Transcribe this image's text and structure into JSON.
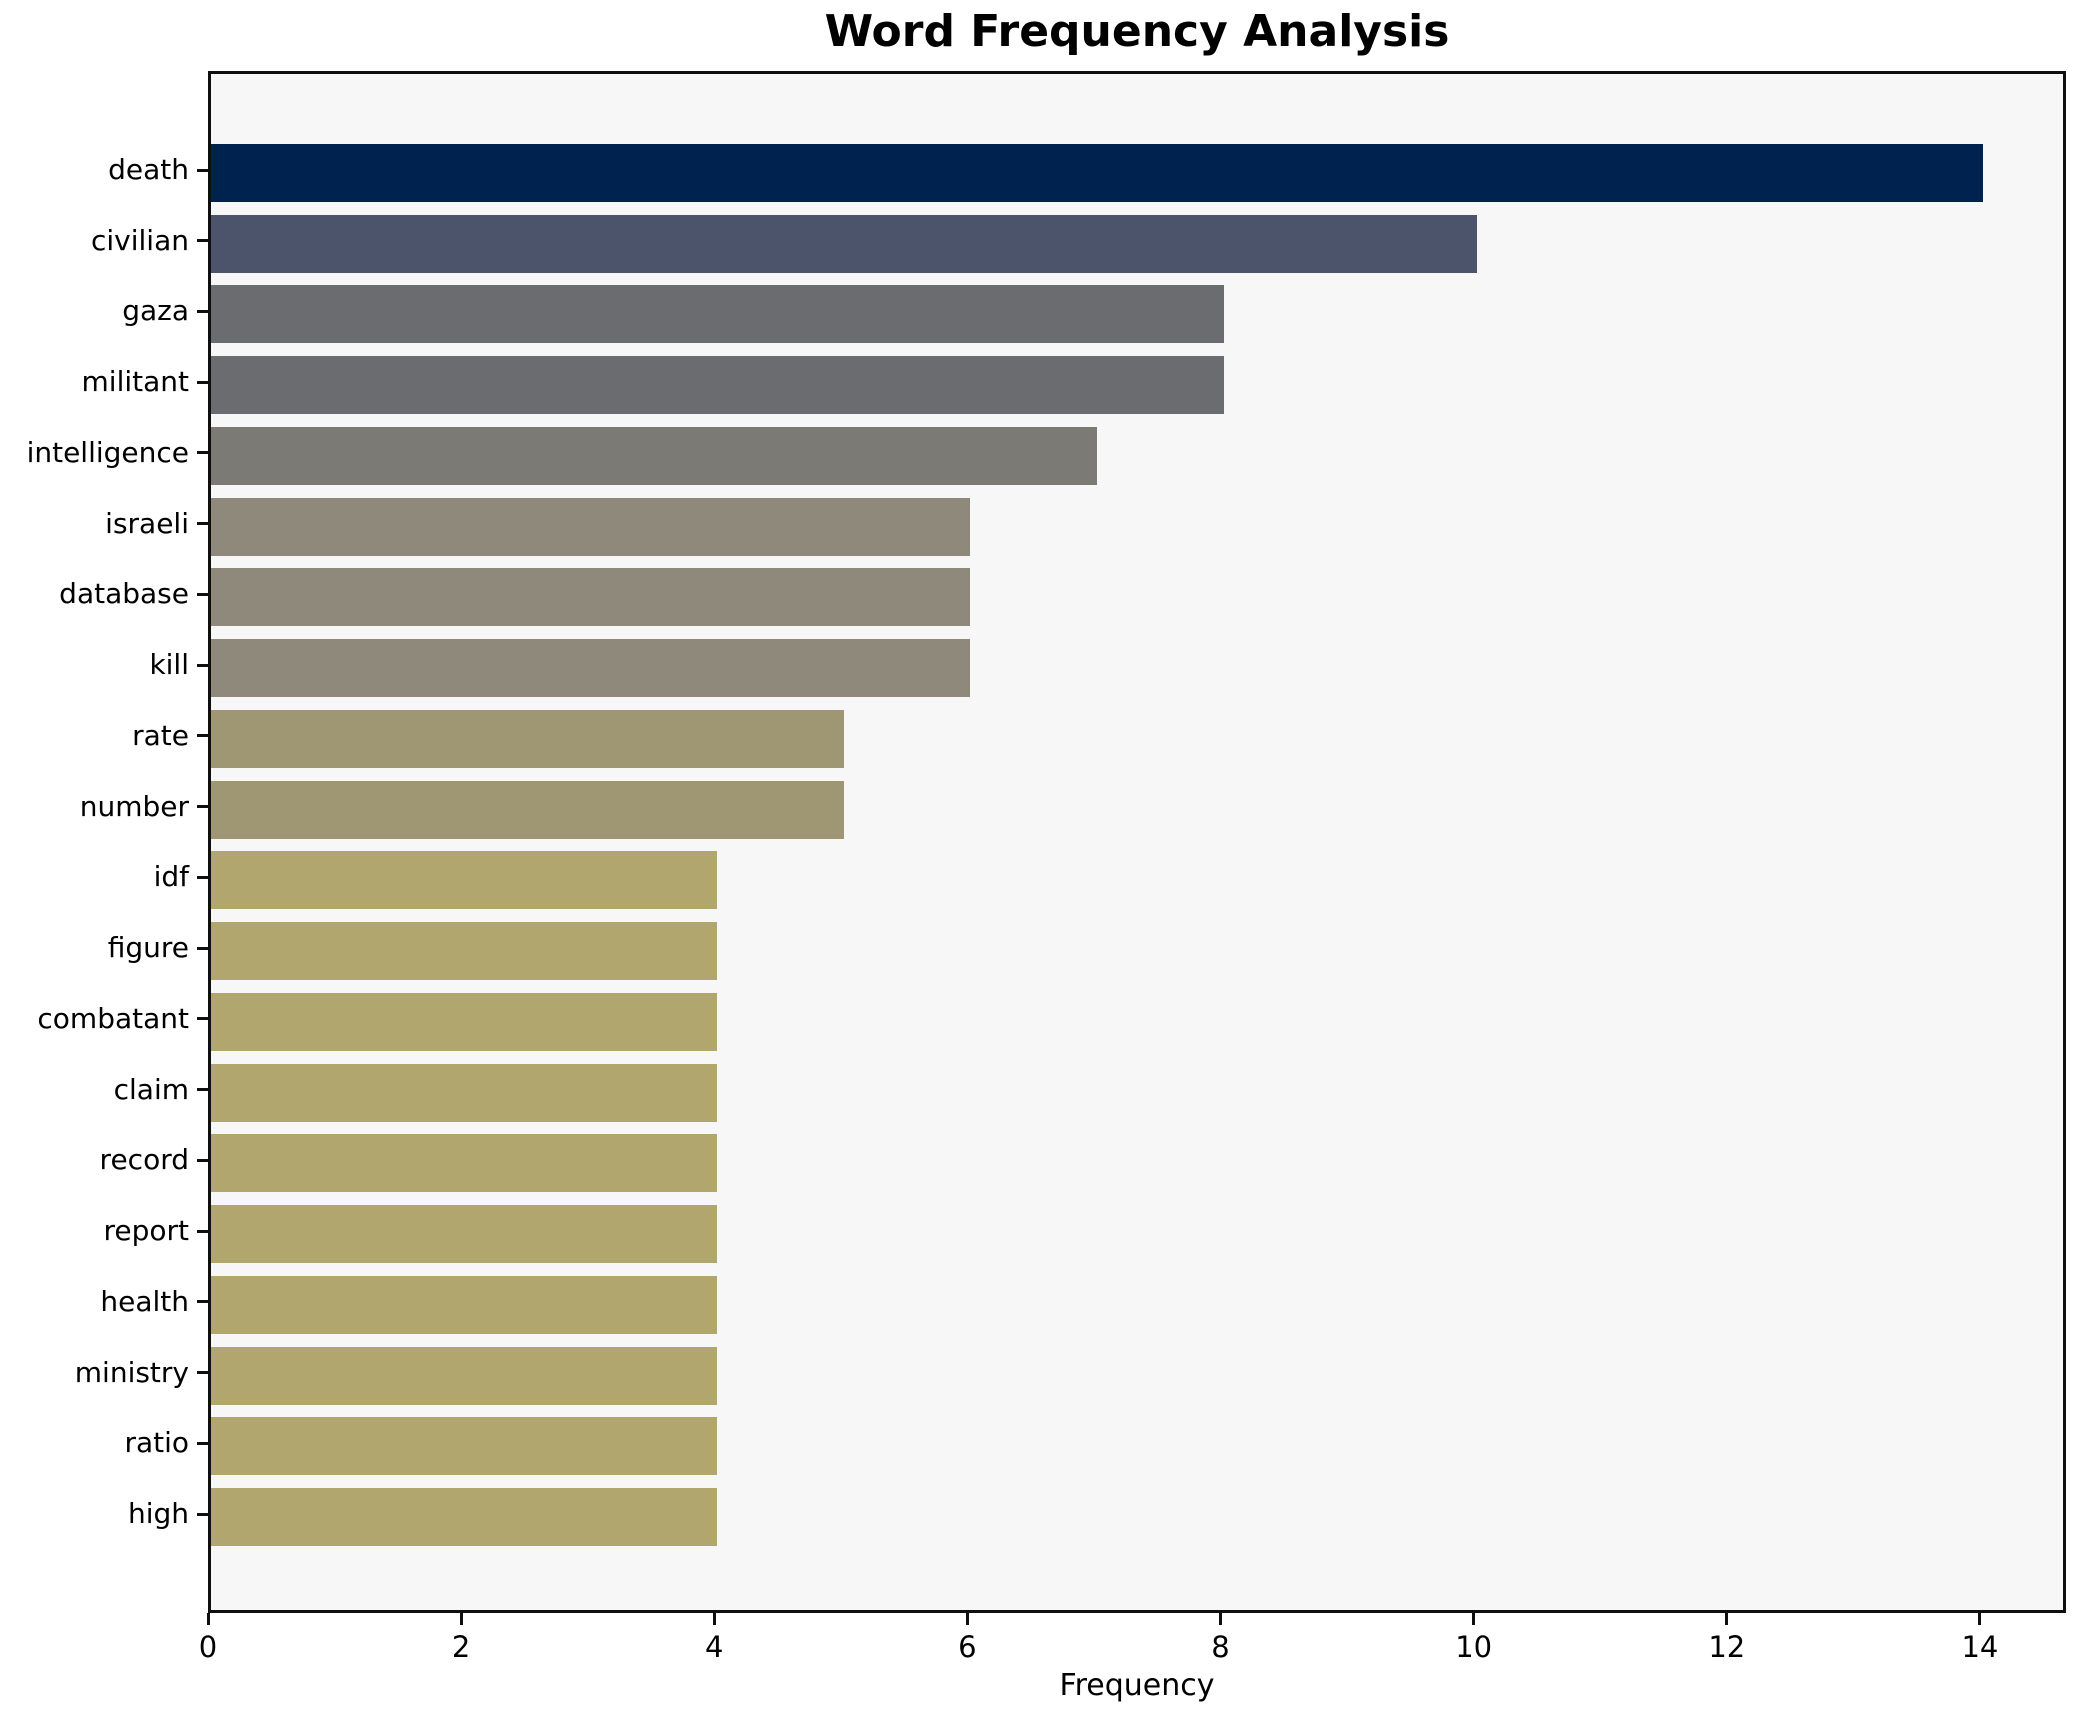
{
  "title": "Word Frequency Analysis",
  "chart_data": {
    "type": "bar",
    "orientation": "horizontal",
    "title": "Word Frequency Analysis",
    "xlabel": "Frequency",
    "ylabel": "",
    "categories": [
      "death",
      "civilian",
      "gaza",
      "militant",
      "intelligence",
      "israeli",
      "database",
      "kill",
      "rate",
      "number",
      "idf",
      "figure",
      "combatant",
      "claim",
      "record",
      "report",
      "health",
      "ministry",
      "ratio",
      "high"
    ],
    "values": [
      14,
      10,
      8,
      8,
      7,
      6,
      6,
      6,
      5,
      5,
      4,
      4,
      4,
      4,
      4,
      4,
      4,
      4,
      4,
      4
    ],
    "bar_colors": [
      "#00224e",
      "#4c546c",
      "#6b6c70",
      "#6b6c70",
      "#7b7a75",
      "#8e897a",
      "#8e897a",
      "#8e897a",
      "#9f9774",
      "#9f9774",
      "#b1a76e",
      "#b1a76e",
      "#b1a76e",
      "#b1a76e",
      "#b1a76e",
      "#b1a76e",
      "#b1a76e",
      "#b1a76e",
      "#b1a76e",
      "#b1a76e"
    ],
    "xlim": [
      0,
      14.68
    ],
    "xticks": [
      0,
      2,
      4,
      6,
      8,
      10,
      12,
      14
    ],
    "grid": false,
    "legend_position": "none",
    "plot_background": "#f7f7f8",
    "figure_background": "#ffffff",
    "spine_color": "#0f0f0f"
  }
}
